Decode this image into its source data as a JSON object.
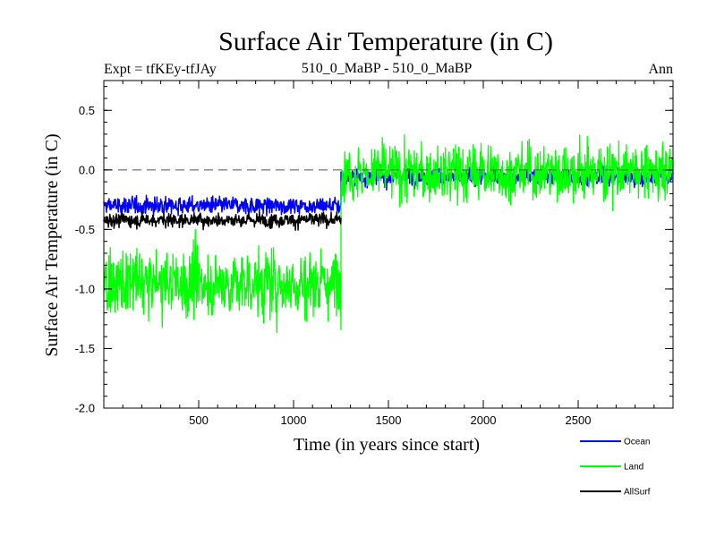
{
  "chart_data": {
    "type": "line",
    "title": "Surface Air Temperature (in C)",
    "subtitle_left": "Expt = tfKEy-tfJAy",
    "subtitle_center": "510_0_MaBP - 510_0_MaBP",
    "subtitle_right": "Ann",
    "xlabel": "Time (in years since start)",
    "ylabel": "Surface Air Temperature (in C)",
    "xlim": [
      0,
      3000
    ],
    "ylim": [
      -2.0,
      0.75
    ],
    "x_ticks": [
      500,
      1000,
      1500,
      2000,
      2500
    ],
    "x_tick_labels": [
      "500",
      "1000",
      "1500",
      "2000",
      "2500"
    ],
    "y_ticks": [
      -2.0,
      -1.5,
      -1.0,
      -0.5,
      0.0,
      0.5
    ],
    "y_tick_labels": [
      "-2.0",
      "-1.5",
      "-1.0",
      "-0.5",
      "0.0",
      "0.5"
    ],
    "reference_line": {
      "y": 0.0,
      "style": "dashed"
    },
    "legend_placement": "bottom-right",
    "series": [
      {
        "name": "Ocean",
        "color": "#0000ff",
        "segments": [
          {
            "x_start": 0,
            "x_end": 1250,
            "mean": -0.3,
            "spread": 0.06
          },
          {
            "x_start": 1250,
            "x_end": 3000,
            "mean": -0.06,
            "spread": 0.06
          }
        ],
        "x_start": 0,
        "x_end": 3000
      },
      {
        "name": "Land",
        "color": "#00ff00",
        "segments": [
          {
            "x_start": 0,
            "x_end": 1250,
            "mean": -0.95,
            "spread": 0.24
          },
          {
            "x_start": 1250,
            "x_end": 3000,
            "mean": -0.02,
            "spread": 0.2
          }
        ],
        "x_start": 0,
        "x_end": 3000
      },
      {
        "name": "AllSurf",
        "color": "#000000",
        "segments": [
          {
            "x_start": 0,
            "x_end": 1250,
            "mean": -0.42,
            "spread": 0.05
          }
        ],
        "x_start": 0,
        "x_end": 1250
      }
    ]
  }
}
